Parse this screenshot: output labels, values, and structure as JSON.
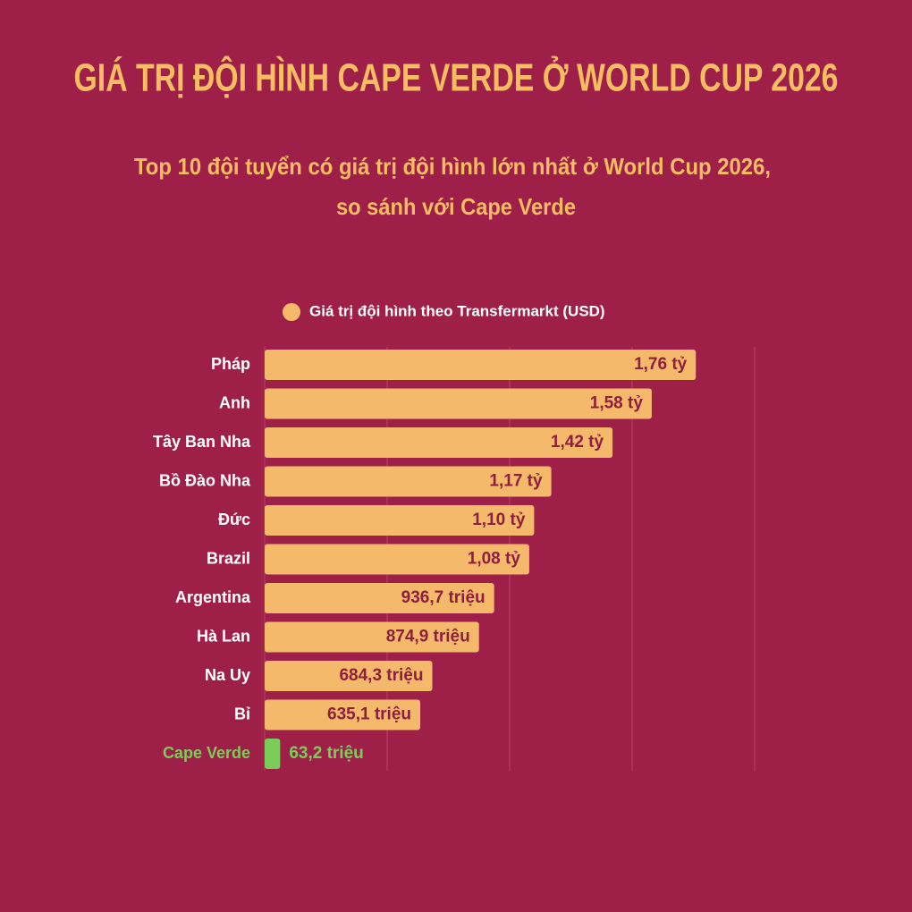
{
  "chart_data": {
    "type": "bar",
    "orientation": "horizontal",
    "title": "GIÁ TRỊ ĐỘI HÌNH CAPE VERDE Ở WORLD CUP 2026",
    "subtitle": [
      "Top 10 đội tuyển có giá trị đội hình lớn nhất ở World Cup 2026,",
      "so sánh với Cape Verde"
    ],
    "categories": [
      "Pháp",
      "Anh",
      "Tây Ban Nha",
      "Bồ Đào Nha",
      "Đức",
      "Brazil",
      "Argentina",
      "Hà Lan",
      "Na Uy",
      "Bỉ",
      "Cape Verde"
    ],
    "series": [
      {
        "name": "Giá trị đội hình theo Transfermarkt (USD)",
        "color": "#f5b96b",
        "values": [
          1760,
          1580,
          1420,
          1170,
          1100,
          1080,
          936.7,
          874.9,
          684.3,
          635.1,
          63.2
        ],
        "value_labels": [
          "1,76 tỷ",
          "1,58 tỷ",
          "1,42 tỷ",
          "1,17 tỷ",
          "1,10 tỷ",
          "1,08 tỷ",
          "936,7 triệu",
          "874,9 triệu",
          "684,3 triệu",
          "635,1 triệu",
          "63,2 triệu"
        ],
        "colors": [
          "#f5b96b",
          "#f5b96b",
          "#f5b96b",
          "#f5b96b",
          "#f5b96b",
          "#f5b96b",
          "#f5b96b",
          "#f5b96b",
          "#f5b96b",
          "#f5b96b",
          "#7ccc5a"
        ]
      }
    ],
    "xlim": [
      0,
      2000
    ],
    "xticks": [
      0,
      500,
      1000,
      1500,
      2000
    ],
    "grid": true,
    "legend": "top"
  }
}
